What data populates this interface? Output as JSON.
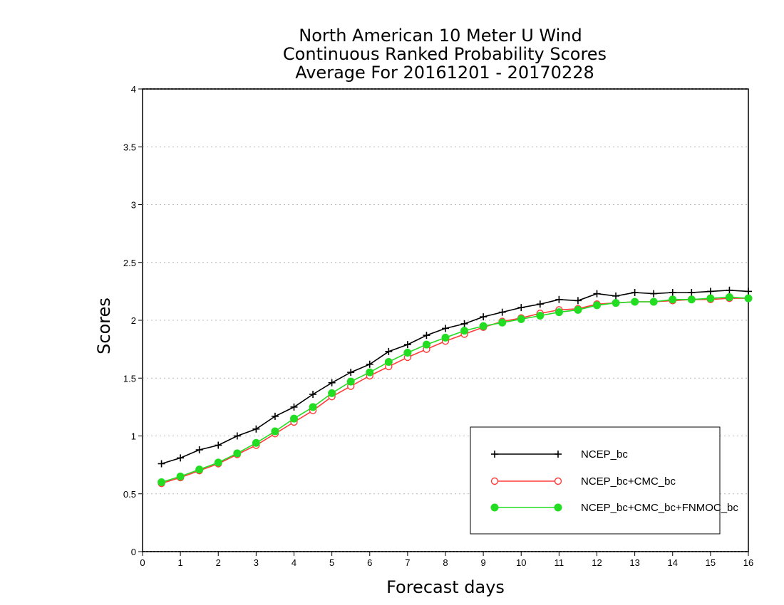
{
  "chart_data": {
    "type": "line",
    "title": [
      "North American 10 Meter U Wind",
      "Continuous Ranked Probability Scores",
      "Average For 20161201 - 20170228"
    ],
    "xlabel": "Forecast days",
    "ylabel": "Scores",
    "xlim": [
      0,
      16
    ],
    "ylim": [
      0,
      4
    ],
    "xticks": [
      "0",
      "1",
      "2",
      "3",
      "4",
      "5",
      "6",
      "7",
      "8",
      "9",
      "10",
      "11",
      "12",
      "13",
      "14",
      "15",
      "16"
    ],
    "yticks": [
      "0",
      "0.5",
      "1",
      "1.5",
      "2",
      "2.5",
      "3",
      "3.5",
      "4"
    ],
    "grid": "horizontal dotted",
    "legend_position": "bottom-right",
    "x": [
      0.5,
      1,
      1.5,
      2,
      2.5,
      3,
      3.5,
      4,
      4.5,
      5,
      5.5,
      6,
      6.5,
      7,
      7.5,
      8,
      8.5,
      9,
      9.5,
      10,
      10.5,
      11,
      11.5,
      12,
      12.5,
      13,
      13.5,
      14,
      14.5,
      15,
      15.5,
      16
    ],
    "series": [
      {
        "name": "NCEP_bc",
        "color": "#000000",
        "marker": "plus",
        "values": [
          0.76,
          0.81,
          0.88,
          0.92,
          1.0,
          1.06,
          1.17,
          1.25,
          1.36,
          1.46,
          1.55,
          1.62,
          1.73,
          1.79,
          1.87,
          1.93,
          1.97,
          2.03,
          2.07,
          2.11,
          2.14,
          2.18,
          2.17,
          2.23,
          2.21,
          2.24,
          2.23,
          2.24,
          2.24,
          2.25,
          2.26,
          2.25
        ]
      },
      {
        "name": "NCEP_bc+CMC_bc",
        "color": "#ff3b3b",
        "marker": "open-circle",
        "values": [
          0.59,
          0.64,
          0.7,
          0.76,
          0.84,
          0.92,
          1.02,
          1.12,
          1.22,
          1.34,
          1.43,
          1.52,
          1.6,
          1.68,
          1.75,
          1.82,
          1.88,
          1.94,
          1.99,
          2.02,
          2.06,
          2.09,
          2.1,
          2.14,
          2.15,
          2.16,
          2.16,
          2.17,
          2.18,
          2.18,
          2.19,
          2.19
        ]
      },
      {
        "name": "NCEP_bc+CMC_bc+FNMOC_bc",
        "color": "#22dd22",
        "marker": "filled-circle",
        "values": [
          0.6,
          0.65,
          0.71,
          0.77,
          0.85,
          0.94,
          1.04,
          1.15,
          1.25,
          1.37,
          1.47,
          1.55,
          1.64,
          1.72,
          1.79,
          1.85,
          1.91,
          1.95,
          1.98,
          2.01,
          2.04,
          2.07,
          2.09,
          2.13,
          2.15,
          2.16,
          2.16,
          2.18,
          2.18,
          2.19,
          2.2,
          2.19
        ]
      }
    ]
  }
}
